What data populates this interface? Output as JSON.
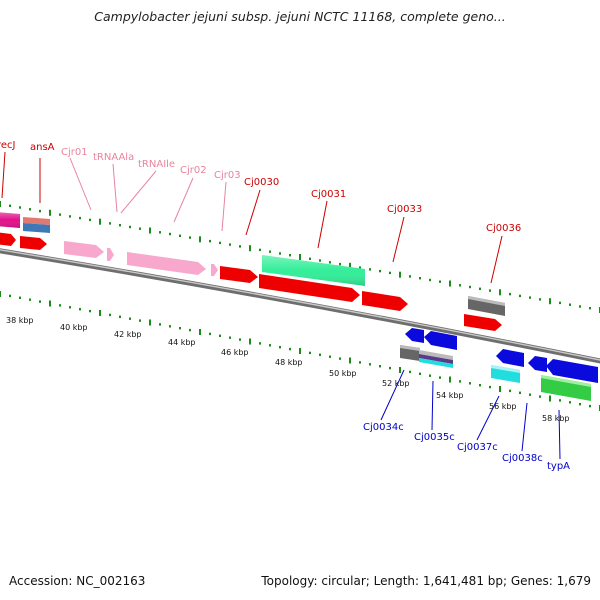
{
  "title": "Campylobacter jejuni subsp. jejuni NCTC 11168, complete geno...",
  "footer": {
    "accession": "Accession: NC_002163",
    "topology": "Topology: circular; Length: 1,641,481 bp; Genes: 1,679"
  },
  "scale_labels": [
    "38 kbp",
    "40 kbp",
    "42 kbp",
    "44 kbp",
    "46 kbp",
    "48 kbp",
    "50 kbp",
    "52 kbp",
    "54 kbp",
    "56 kbp",
    "58 kbp"
  ],
  "forward_labels": [
    {
      "text": "recJ",
      "color": "#cc0000"
    },
    {
      "text": "ansA",
      "color": "#cc0000"
    },
    {
      "text": "Cjr01",
      "color": "#e8849f"
    },
    {
      "text": "tRNAAla",
      "color": "#e8849f"
    },
    {
      "text": "tRNAIle",
      "color": "#e8849f"
    },
    {
      "text": "Cjr02",
      "color": "#e8849f"
    },
    {
      "text": "Cjr03",
      "color": "#e8849f"
    },
    {
      "text": "Cj0030",
      "color": "#cc0000"
    },
    {
      "text": "Cj0031",
      "color": "#cc0000"
    },
    {
      "text": "Cj0033",
      "color": "#cc0000"
    },
    {
      "text": "Cj0036",
      "color": "#cc0000"
    }
  ],
  "reverse_labels": [
    {
      "text": "Cj0034c",
      "color": "#0000cc"
    },
    {
      "text": "Cj0035c",
      "color": "#0000cc"
    },
    {
      "text": "Cj0037c",
      "color": "#0000cc"
    },
    {
      "text": "Cj0038c",
      "color": "#0000cc"
    },
    {
      "text": "typA",
      "color": "#0000cc"
    }
  ],
  "colors": {
    "cds_forward": "#ee0000",
    "cds_reverse": "#0a0adc",
    "rna": "#f7a8cc",
    "green_feature": "#33ee99",
    "grey_feature": "#666666",
    "cyan_feature": "#22dddd",
    "backbone": "#888888",
    "tick": "#1a8c1a"
  }
}
